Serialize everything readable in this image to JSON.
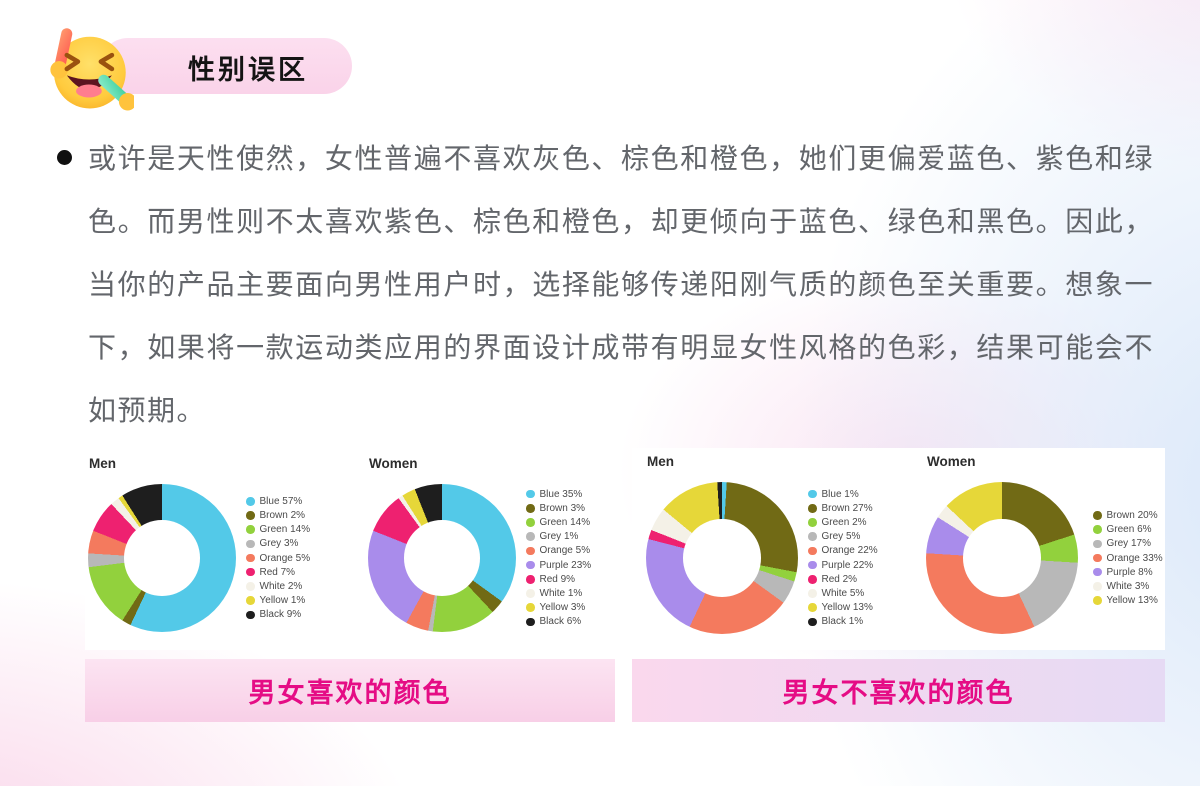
{
  "header": {
    "title": "性别误区",
    "emoji": "laughing-emoji-with-glow-sticks"
  },
  "paragraph": {
    "bullet": "●",
    "text": "或许是天性使然，女性普遍不喜欢灰色、棕色和橙色，她们更偏爱蓝色、紫色和绿色。而男性则不太喜欢紫色、棕色和橙色，却更倾向于蓝色、绿色和黑色。因此，当你的产品主要面向男性用户时，选择能够传递阳刚气质的颜色至关重要。想象一下，如果将一款运动类应用的界面设计成带有明显女性风格的色彩，结果可能会不如预期。"
  },
  "colors": {
    "accent_pink": "#e50c85",
    "badge_bg": "#fad3e9",
    "caption_left_bg": [
      "#fce4f2",
      "#f8cfe7"
    ],
    "caption_right_bg": [
      "#fad8ed",
      "#e6daf4"
    ],
    "body_text": "#63666b"
  },
  "captions": {
    "left": "男女喜欢的颜色",
    "right": "男女不喜欢的颜色"
  },
  "chart_data": [
    {
      "type": "pie",
      "variant": "donut",
      "group": "男女喜欢的颜色",
      "title": "Men",
      "legend_position": "right",
      "items": [
        {
          "label": "Blue",
          "value": 57,
          "color": "#53c9e8"
        },
        {
          "label": "Brown",
          "value": 2,
          "color": "#716a15"
        },
        {
          "label": "Green",
          "value": 14,
          "color": "#92d13d"
        },
        {
          "label": "Grey",
          "value": 3,
          "color": "#b8b8b8"
        },
        {
          "label": "Orange",
          "value": 5,
          "color": "#f47a5e"
        },
        {
          "label": "Red",
          "value": 7,
          "color": "#ee2170"
        },
        {
          "label": "White",
          "value": 2,
          "color": "#f4f1e7"
        },
        {
          "label": "Yellow",
          "value": 1,
          "color": "#e6d739"
        },
        {
          "label": "Black",
          "value": 9,
          "color": "#1e1e1e"
        }
      ]
    },
    {
      "type": "pie",
      "variant": "donut",
      "group": "男女喜欢的颜色",
      "title": "Women",
      "legend_position": "right",
      "items": [
        {
          "label": "Blue",
          "value": 35,
          "color": "#53c9e8"
        },
        {
          "label": "Brown",
          "value": 3,
          "color": "#716a15"
        },
        {
          "label": "Green",
          "value": 14,
          "color": "#92d13d"
        },
        {
          "label": "Grey",
          "value": 1,
          "color": "#b8b8b8"
        },
        {
          "label": "Orange",
          "value": 5,
          "color": "#f47a5e"
        },
        {
          "label": "Purple",
          "value": 23,
          "color": "#a98ceb"
        },
        {
          "label": "Red",
          "value": 9,
          "color": "#ee2170"
        },
        {
          "label": "White",
          "value": 1,
          "color": "#f4f1e7"
        },
        {
          "label": "Yellow",
          "value": 3,
          "color": "#e6d739"
        },
        {
          "label": "Black",
          "value": 6,
          "color": "#1e1e1e"
        }
      ]
    },
    {
      "type": "pie",
      "variant": "donut",
      "group": "男女不喜欢的颜色",
      "title": "Men",
      "legend_position": "right",
      "items": [
        {
          "label": "Blue",
          "value": 1,
          "color": "#53c9e8"
        },
        {
          "label": "Brown",
          "value": 27,
          "color": "#716a15"
        },
        {
          "label": "Green",
          "value": 2,
          "color": "#92d13d"
        },
        {
          "label": "Grey",
          "value": 5,
          "color": "#b8b8b8"
        },
        {
          "label": "Orange",
          "value": 22,
          "color": "#f47a5e"
        },
        {
          "label": "Purple",
          "value": 22,
          "color": "#a98ceb"
        },
        {
          "label": "Red",
          "value": 2,
          "color": "#ee2170"
        },
        {
          "label": "White",
          "value": 5,
          "color": "#f4f1e7"
        },
        {
          "label": "Yellow",
          "value": 13,
          "color": "#e6d739"
        },
        {
          "label": "Black",
          "value": 1,
          "color": "#1e1e1e"
        }
      ]
    },
    {
      "type": "pie",
      "variant": "donut",
      "group": "男女不喜欢的颜色",
      "title": "Women",
      "legend_position": "right",
      "items": [
        {
          "label": "Brown",
          "value": 20,
          "color": "#716a15"
        },
        {
          "label": "Green",
          "value": 6,
          "color": "#92d13d"
        },
        {
          "label": "Grey",
          "value": 17,
          "color": "#b8b8b8"
        },
        {
          "label": "Orange",
          "value": 33,
          "color": "#f47a5e"
        },
        {
          "label": "Purple",
          "value": 8,
          "color": "#a98ceb"
        },
        {
          "label": "White",
          "value": 3,
          "color": "#f4f1e7"
        },
        {
          "label": "Yellow",
          "value": 13,
          "color": "#e6d739"
        }
      ]
    }
  ]
}
